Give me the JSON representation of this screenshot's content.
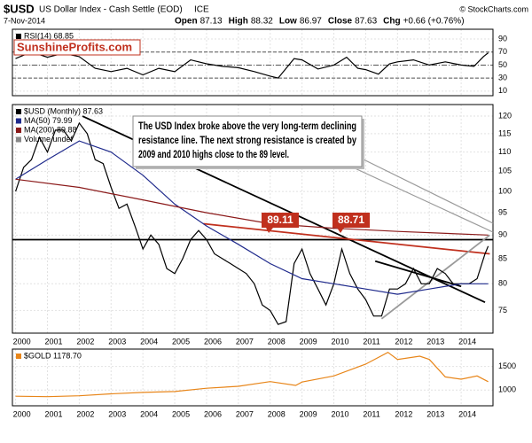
{
  "header": {
    "symbol": "$USD",
    "name": "US Dollar Index - Cash Settle (EOD)",
    "exchange": "ICE",
    "date": "7-Nov-2014",
    "quote": [
      {
        "label": "Open",
        "value": "87.13"
      },
      {
        "label": "High",
        "value": "88.32"
      },
      {
        "label": "Low",
        "value": "86.97"
      },
      {
        "label": "Close",
        "value": "87.63"
      },
      {
        "label": "Chg",
        "value": "+0.66 (+0.76%)"
      }
    ],
    "credit": "© StockCharts.com"
  },
  "chart_data": [
    {
      "type": "line",
      "watermark": "SunshineProfits.com",
      "series": [
        {
          "name": "RSI(14) 68.85",
          "color": "#000000",
          "x": [
            2000,
            2000.5,
            2001,
            2001.5,
            2002,
            2002.5,
            2003,
            2003.5,
            2004,
            2004.5,
            2005,
            2005.5,
            2006,
            2006.5,
            2007,
            2007.5,
            2008,
            2008.25,
            2008.75,
            2009,
            2009.5,
            2010,
            2010.4,
            2010.75,
            2011,
            2011.4,
            2011.75,
            2012,
            2012.5,
            2013,
            2013.5,
            2014,
            2014.4,
            2014.7,
            2014.85
          ],
          "values": [
            60,
            70,
            62,
            68,
            63,
            45,
            40,
            45,
            35,
            45,
            40,
            58,
            52,
            48,
            46,
            40,
            33,
            30,
            60,
            58,
            44,
            50,
            62,
            45,
            43,
            36,
            52,
            55,
            58,
            50,
            55,
            50,
            48,
            63,
            68.85
          ]
        }
      ],
      "reference_lines": [
        70,
        50,
        30
      ],
      "xlim": [
        1999.9,
        2015.0
      ],
      "xticks": [
        2000,
        2001,
        2002,
        2003,
        2004,
        2005,
        2006,
        2007,
        2008,
        2009,
        2010,
        2011,
        2012,
        2013,
        2014
      ],
      "ylim": [
        3,
        105
      ],
      "yticks": [
        10,
        30,
        50,
        70,
        90
      ],
      "grid": true
    },
    {
      "type": "line",
      "log": true,
      "series": [
        {
          "name": "$USD (Monthly) 87.63",
          "color": "#000000",
          "x": [
            2000,
            2000.25,
            2000.5,
            2000.75,
            2001,
            2001.25,
            2001.5,
            2001.75,
            2002,
            2002.25,
            2002.5,
            2002.75,
            2003,
            2003.25,
            2003.5,
            2003.75,
            2004,
            2004.25,
            2004.5,
            2004.75,
            2005,
            2005.25,
            2005.5,
            2005.75,
            2006,
            2006.25,
            2006.5,
            2006.75,
            2007,
            2007.25,
            2007.5,
            2007.75,
            2008,
            2008.25,
            2008.5,
            2008.75,
            2009,
            2009.25,
            2009.5,
            2009.75,
            2010,
            2010.25,
            2010.5,
            2010.75,
            2011,
            2011.25,
            2011.5,
            2011.75,
            2012,
            2012.25,
            2012.5,
            2012.75,
            2013,
            2013.25,
            2013.5,
            2013.75,
            2014,
            2014.25,
            2014.5,
            2014.75,
            2014.85
          ],
          "values": [
            100,
            106,
            108,
            114,
            110,
            116,
            116,
            113,
            118,
            115,
            108,
            107,
            101,
            96,
            97,
            92,
            87,
            90,
            88,
            83,
            82,
            85,
            89,
            91,
            89,
            86,
            85,
            84,
            83,
            82,
            80,
            76,
            75,
            72.5,
            73,
            84,
            87,
            82,
            79,
            76,
            80,
            87,
            82,
            79,
            77,
            74,
            74,
            79,
            79,
            80,
            83,
            80,
            80,
            83,
            82,
            80,
            80,
            80,
            81,
            86,
            87.63
          ]
        },
        {
          "name": "MA(50) 79.99",
          "color": "#1f2a8c",
          "x": [
            2000,
            2001,
            2002,
            2003,
            2004,
            2005,
            2006,
            2007,
            2008,
            2009,
            2010,
            2011,
            2012,
            2013,
            2014,
            2014.85
          ],
          "values": [
            103,
            108,
            113,
            110,
            104,
            97,
            92,
            88,
            84,
            81,
            80,
            79,
            78,
            79,
            80,
            80
          ]
        },
        {
          "name": "MA(200) 89.88",
          "color": "#8b1a1a",
          "x": [
            2000,
            2002,
            2004,
            2006,
            2008,
            2010,
            2012,
            2014.85
          ],
          "values": [
            103,
            101,
            98,
            95,
            92.5,
            91.5,
            90.8,
            90
          ]
        }
      ],
      "legend_note": "Volume undef",
      "trend_lines": [
        {
          "color": "#000000",
          "x": [
            2002.1,
            2014.75
          ],
          "y": [
            120,
            76.5
          ]
        },
        {
          "color": "#000000",
          "x": [
            1999.9,
            2015.0
          ],
          "y": [
            89,
            89
          ]
        },
        {
          "color": "#c0301e",
          "x": [
            2005.9,
            2014.9
          ],
          "y": [
            92.5,
            86
          ]
        },
        {
          "color": "#9a9a9a",
          "x": [
            2011.5,
            2014.9
          ],
          "y": [
            73.5,
            90
          ]
        },
        {
          "color": "#000000",
          "x": [
            2011.3,
            2014.0
          ],
          "y": [
            84.5,
            79.5
          ]
        }
      ],
      "level_labels": [
        89.11,
        88.71
      ],
      "annotation": [
        "The USD Index broke above the very long-term declining",
        "resistance line. The next strong resistance is created by",
        "2009 and 2010 highs close to the 89 level."
      ],
      "xlim": [
        1999.9,
        2015.0
      ],
      "xticks": [
        2000,
        2001,
        2002,
        2003,
        2004,
        2005,
        2006,
        2007,
        2008,
        2009,
        2010,
        2011,
        2012,
        2013,
        2014
      ],
      "ylim": [
        71,
        123.4
      ],
      "yticks": [
        75,
        80,
        85,
        90,
        95,
        100,
        105,
        110,
        115,
        120
      ],
      "grid": true
    },
    {
      "type": "line",
      "series": [
        {
          "name": "$GOLD 1178.70",
          "color": "#e8861a",
          "x": [
            2000,
            2001,
            2002,
            2003,
            2004,
            2005,
            2006,
            2007,
            2008,
            2008.8,
            2009,
            2010,
            2011,
            2011.7,
            2012,
            2012.7,
            2013,
            2013.5,
            2014,
            2014.5,
            2014.85
          ],
          "values": [
            870,
            860,
            880,
            920,
            950,
            970,
            1040,
            1080,
            1180,
            1100,
            1170,
            1300,
            1550,
            1800,
            1650,
            1720,
            1650,
            1280,
            1230,
            1300,
            1178.7
          ]
        }
      ],
      "xlim": [
        1999.9,
        2015.0
      ],
      "xticks": [
        2000,
        2001,
        2002,
        2003,
        2004,
        2005,
        2006,
        2007,
        2008,
        2009,
        2010,
        2011,
        2012,
        2013,
        2014
      ],
      "ylim": [
        667,
        1870
      ],
      "yticks": [
        1000,
        1500
      ],
      "grid": true
    }
  ]
}
